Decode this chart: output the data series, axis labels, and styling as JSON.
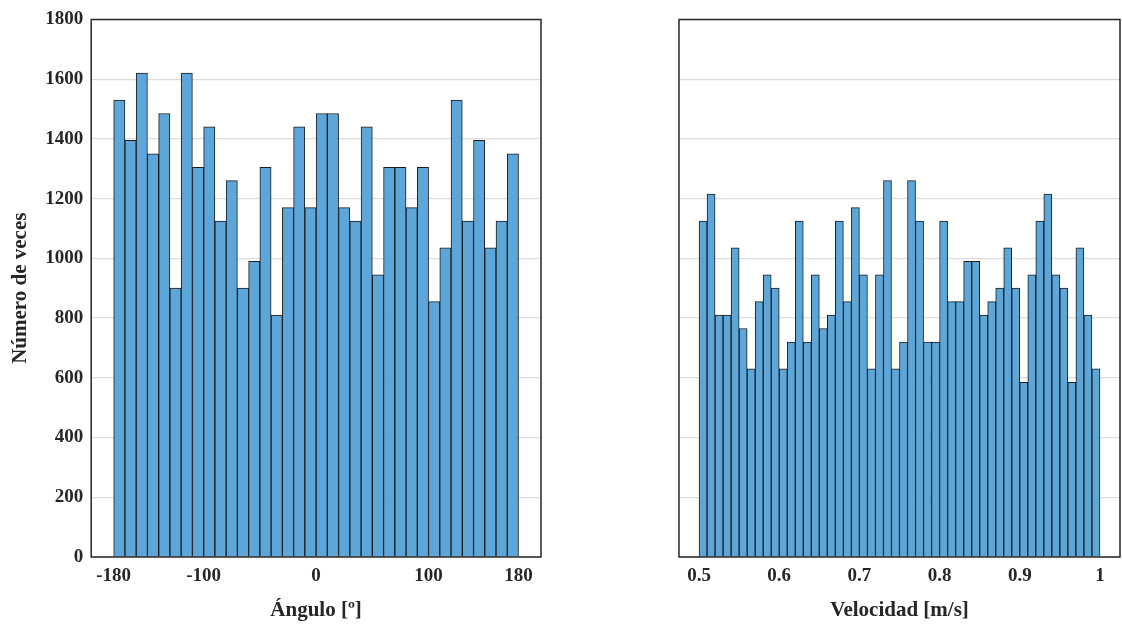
{
  "chart_data": [
    {
      "type": "histogram",
      "xlabel": "Ángulo [º]",
      "ylabel": "Número de veces",
      "color": "#5ca6da",
      "grid": "y",
      "bins": [
        -180,
        -170,
        -160,
        -150,
        -140,
        -130,
        -120,
        -110,
        -100,
        -90,
        -80,
        -70,
        -60,
        -50,
        -40,
        -30,
        -20,
        -10,
        0,
        10,
        20,
        30,
        40,
        50,
        60,
        70,
        80,
        90,
        100,
        110,
        120,
        130,
        140,
        150,
        160,
        170,
        180
      ],
      "values": [
        1530,
        1395,
        1620,
        1350,
        1485,
        900,
        1620,
        1305,
        1440,
        1125,
        1260,
        900,
        990,
        1305,
        810,
        1170,
        1440,
        1170,
        1485,
        1485,
        1170,
        1125,
        1440,
        945,
        1305,
        1305,
        1170,
        1305,
        855,
        1035,
        1530,
        1125,
        1395,
        1035,
        1125,
        1350
      ],
      "xlim": [
        -200,
        200
      ],
      "xticks": [
        -180,
        -100,
        0,
        100,
        180
      ],
      "ylim": [
        0,
        1800
      ],
      "yticks": [
        0,
        200,
        400,
        600,
        800,
        1000,
        1200,
        1400,
        1600,
        1800
      ]
    },
    {
      "type": "histogram",
      "xlabel": "Velocidad [m/s]",
      "color": "#5ca6da",
      "grid": "y",
      "tick_labels": "x",
      "bins": [
        0.5,
        0.51,
        0.52,
        0.53,
        0.54,
        0.55,
        0.56,
        0.57,
        0.58,
        0.59,
        0.6,
        0.61,
        0.62,
        0.63,
        0.64,
        0.65,
        0.66,
        0.67,
        0.68,
        0.69,
        0.7,
        0.71,
        0.72,
        0.73,
        0.74,
        0.75,
        0.76,
        0.77,
        0.78,
        0.79,
        0.8,
        0.81,
        0.82,
        0.83,
        0.84,
        0.85,
        0.86,
        0.87,
        0.88,
        0.89,
        0.9,
        0.91,
        0.92,
        0.93,
        0.94,
        0.95,
        0.96,
        0.97,
        0.98,
        0.99,
        1
      ],
      "values": [
        1125,
        1215,
        810,
        810,
        1035,
        765,
        630,
        855,
        945,
        900,
        630,
        720,
        1125,
        720,
        945,
        765,
        810,
        1125,
        855,
        1170,
        945,
        630,
        945,
        1260,
        630,
        720,
        1260,
        1125,
        720,
        720,
        1125,
        855,
        855,
        990,
        990,
        810,
        855,
        900,
        1035,
        900,
        585,
        945,
        1125,
        1215,
        945,
        900,
        585,
        1035,
        810,
        630
      ],
      "xlim": [
        0.475,
        1.025
      ],
      "xticks": [
        0.5,
        0.6,
        0.7,
        0.8,
        0.9,
        1
      ],
      "ylim": [
        0,
        1800
      ],
      "yticks": [
        0,
        200,
        400,
        600,
        800,
        1000,
        1200,
        1400,
        1600,
        1800
      ]
    }
  ]
}
